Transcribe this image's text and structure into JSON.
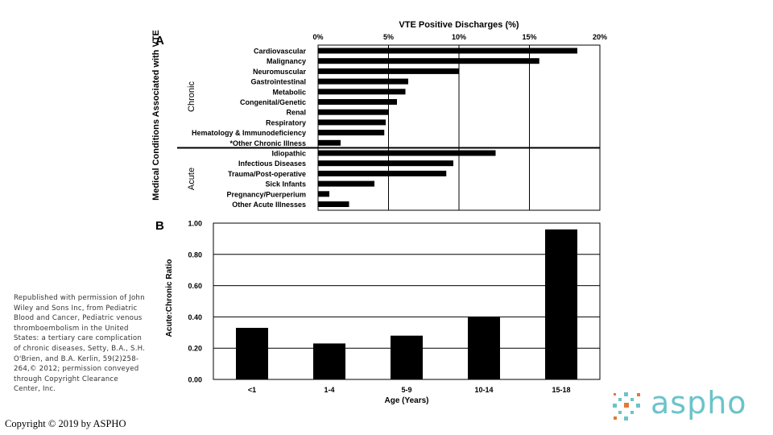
{
  "chart_data": [
    {
      "type": "bar",
      "orientation": "horizontal",
      "panel": "A",
      "title": "VTE Positive Discharges (%)",
      "ylabel": "Medical Conditions Associated with VTE",
      "group_labels": [
        "Chronic",
        "Acute"
      ],
      "xlim": [
        0,
        20
      ],
      "xticks": [
        "0%",
        "5%",
        "10%",
        "15%",
        "20%"
      ],
      "categories": [
        "Cardiovascular",
        "Malignancy",
        "Neuromuscular",
        "Gastrointestinal",
        "Metabolic",
        "Congenital/Genetic",
        "Renal",
        "Respiratory",
        "Hematology & Immunodeficiency",
        "*Other Chronic Illness",
        "Idiopathic",
        "Infectious Diseases",
        "Trauma/Post-operative",
        "Sick Infants",
        "Pregnancy/Puerperium",
        "Other Acute Illnesses"
      ],
      "groups": [
        "Chronic",
        "Chronic",
        "Chronic",
        "Chronic",
        "Chronic",
        "Chronic",
        "Chronic",
        "Chronic",
        "Chronic",
        "Chronic",
        "Acute",
        "Acute",
        "Acute",
        "Acute",
        "Acute",
        "Acute"
      ],
      "values": [
        18.4,
        15.7,
        10.0,
        6.4,
        6.2,
        5.6,
        5.0,
        4.8,
        4.7,
        1.6,
        12.6,
        9.6,
        9.1,
        4.0,
        0.8,
        2.2
      ],
      "grid": "vertical"
    },
    {
      "type": "bar",
      "panel": "B",
      "categories": [
        "<1",
        "1-4",
        "5-9",
        "10-14",
        "15-18"
      ],
      "values": [
        0.33,
        0.23,
        0.28,
        0.4,
        0.96
      ],
      "xlabel": "Age (Years)",
      "ylabel": "Acute:Chronic Ratio",
      "ylim": [
        0,
        1.0
      ],
      "yticks": [
        "0.00",
        "0.20",
        "0.40",
        "0.60",
        "0.80",
        "1.00"
      ],
      "grid": "horizontal"
    }
  ],
  "credit": "Republished with permission of John Wiley and Sons Inc, from Pediatric Blood and Cancer, Pediatric venous thromboembolism in the United States: a tertiary care complication of chronic diseases, Setty, B.A., S.H. O'Brien, and B.A. Kerlin, 59(2)258-264,© 2012; permission conveyed through Copyright Clearance Center, Inc.",
  "copyright": "Copyright © 2019 by ASPHO",
  "logo": {
    "text": "aspho",
    "color": "#6bc4c9",
    "accent": "#e07a3a"
  }
}
